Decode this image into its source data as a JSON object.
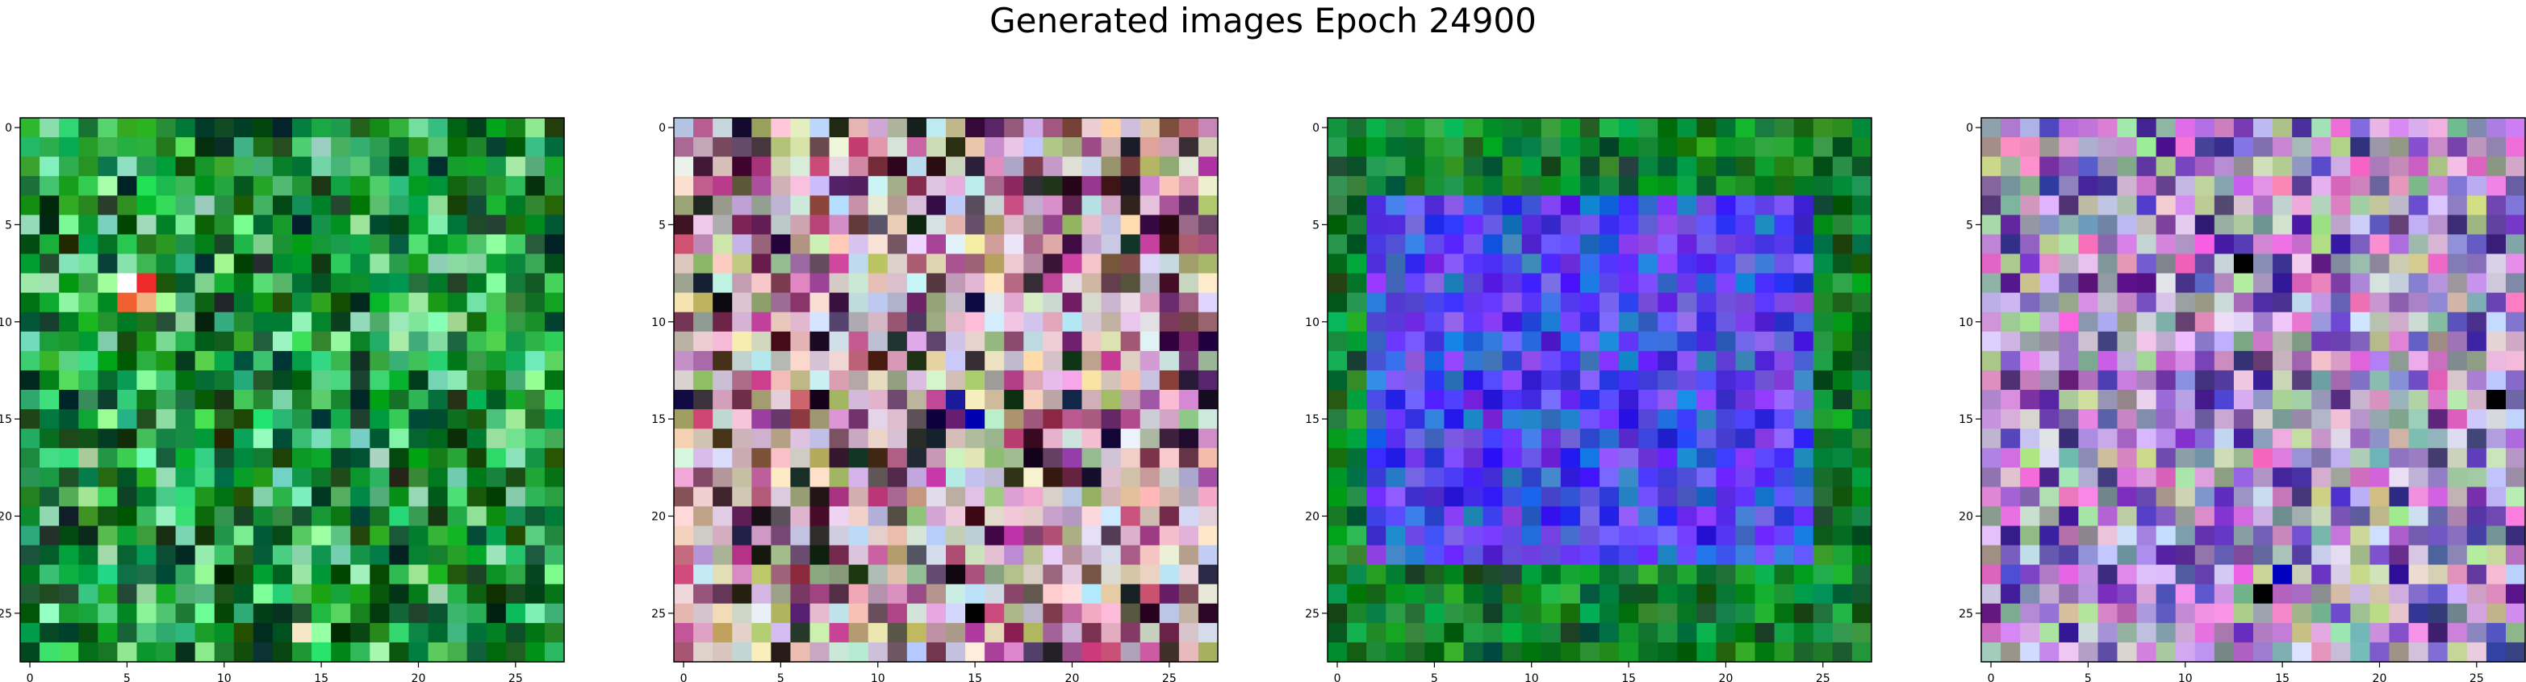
{
  "figure": {
    "title": "Generated images Epoch 24900"
  },
  "chart_data": [
    {
      "type": "heatmap",
      "panel": 1,
      "dominant_palette": [
        "#0c8a2e",
        "#1f9e3c",
        "#0a5c22",
        "#3fc66a",
        "#8ce8a8",
        "#0b3d1a"
      ],
      "accent_pixels": [
        {
          "x": 5,
          "y": 8,
          "color": "#ffffff"
        },
        {
          "x": 6,
          "y": 8,
          "color": "#ee2a2a"
        },
        {
          "x": 5,
          "y": 9,
          "color": "#f06030"
        },
        {
          "x": 6,
          "y": 9,
          "color": "#f4b080"
        },
        {
          "x": 14,
          "y": 26,
          "color": "#f5e6c8"
        }
      ],
      "xlim": [
        -0.5,
        27.5
      ],
      "ylim": [
        27.5,
        -0.5
      ],
      "xticks": [
        0,
        5,
        10,
        15,
        20,
        25
      ],
      "yticks": [
        0,
        5,
        10,
        15,
        20,
        25
      ]
    },
    {
      "type": "heatmap",
      "panel": 2,
      "dominant_palette": [
        "#c9a3b8",
        "#d9c4d0",
        "#a6b07a",
        "#d1d9e6",
        "#b34f8c",
        "#6e3a55",
        "#2a1a2a",
        "#e8d5c0"
      ],
      "accent_pixels": [
        {
          "x": 15,
          "y": 15,
          "color": "#0000b0"
        },
        {
          "x": 14,
          "y": 14,
          "color": "#1a1a9a"
        },
        {
          "x": 15,
          "y": 25,
          "color": "#000000"
        }
      ],
      "xlim": [
        -0.5,
        27.5
      ],
      "ylim": [
        27.5,
        -0.5
      ],
      "xticks": [
        0,
        5,
        10,
        15,
        20,
        25
      ],
      "yticks": [
        0,
        5,
        10,
        15,
        20,
        25
      ]
    },
    {
      "type": "heatmap",
      "panel": 3,
      "dominant_palette": [
        "#0c8a2e",
        "#1f9e3c",
        "#0a5c22",
        "#5a3cf0",
        "#3a2ae0",
        "#7a52f0",
        "#2a70d0"
      ],
      "inner_region": {
        "x0": 2,
        "x1": 24,
        "y0": 4,
        "y1": 22
      },
      "xlim": [
        -0.5,
        27.5
      ],
      "ylim": [
        27.5,
        -0.5
      ],
      "xticks": [
        0,
        5,
        10,
        15,
        20,
        25
      ],
      "yticks": [
        0,
        5,
        10,
        15,
        20,
        25
      ]
    },
    {
      "type": "heatmap",
      "panel": 4,
      "dominant_palette": [
        "#9a7ac8",
        "#c89ad8",
        "#6a4ab8",
        "#e07ad0",
        "#8aa0a0",
        "#d8c8e8",
        "#4a2a8a",
        "#b8d0a0"
      ],
      "accent_pixels": [
        {
          "x": 13,
          "y": 7,
          "color": "#000000"
        },
        {
          "x": 26,
          "y": 14,
          "color": "#000000"
        },
        {
          "x": 14,
          "y": 24,
          "color": "#000000"
        },
        {
          "x": 15,
          "y": 23,
          "color": "#0000c0"
        }
      ],
      "xlim": [
        -0.5,
        27.5
      ],
      "ylim": [
        27.5,
        -0.5
      ],
      "xticks": [
        0,
        5,
        10,
        15,
        20,
        25
      ],
      "yticks": [
        0,
        5,
        10,
        15,
        20,
        25
      ]
    }
  ]
}
